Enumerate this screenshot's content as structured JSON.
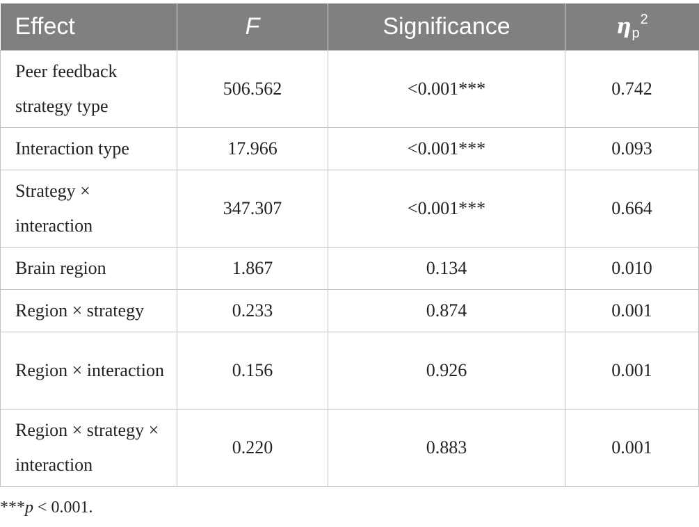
{
  "table": {
    "headers": {
      "effect": "Effect",
      "f": "F",
      "significance": "Significance",
      "eta_symbol": "η",
      "eta_sub": "p",
      "eta_sup": "2"
    },
    "rows": [
      {
        "effect": "Peer feedback strategy type",
        "f": "506.562",
        "significance": "<0.001***",
        "eta": "0.742"
      },
      {
        "effect": "Interaction type",
        "f": "17.966",
        "significance": "<0.001***",
        "eta": "0.093"
      },
      {
        "effect": "Strategy × interaction",
        "f": "347.307",
        "significance": "<0.001***",
        "eta": "0.664"
      },
      {
        "effect": "Brain region",
        "f": "1.867",
        "significance": "0.134",
        "eta": "0.010"
      },
      {
        "effect": "Region × strategy",
        "f": "0.233",
        "significance": "0.874",
        "eta": "0.001"
      },
      {
        "effect": "Region × interaction",
        "f": "0.156",
        "significance": "0.926",
        "eta": "0.001"
      },
      {
        "effect": "Region × strategy × interaction",
        "f": "0.220",
        "significance": "0.883",
        "eta": "0.001"
      }
    ]
  },
  "footnote": {
    "stars": "***",
    "p": "p",
    "rest": " < 0.001."
  }
}
